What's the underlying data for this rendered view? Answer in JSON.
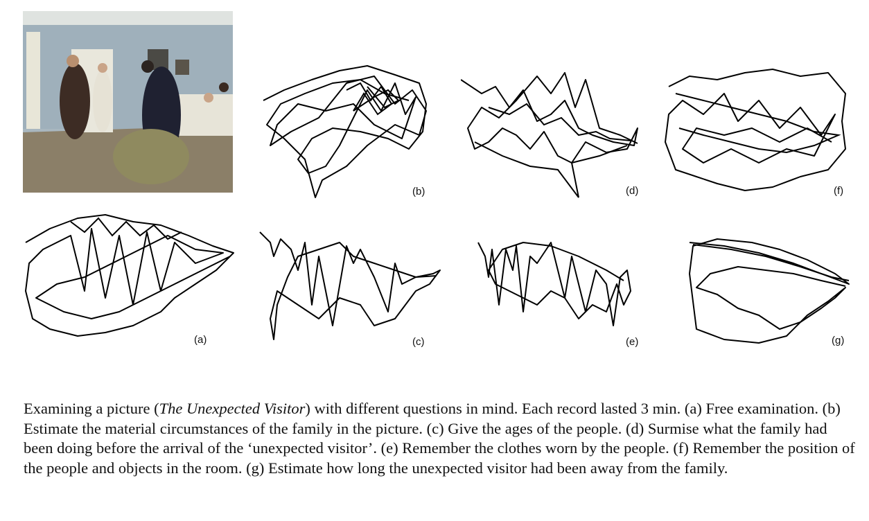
{
  "figure": {
    "panels": [
      {
        "label": "(a)"
      },
      {
        "label": "(b)"
      },
      {
        "label": "(c)"
      },
      {
        "label": "(d)"
      },
      {
        "label": "(e)"
      },
      {
        "label": "(f)"
      },
      {
        "label": "(g)"
      }
    ],
    "painting_title": "The Unexpected Visitor"
  },
  "caption": {
    "lead": "Examining a picture (",
    "title": "The Unexpected Visitor",
    "rest": ") with different questions in mind. Each record lasted 3 min. (a) Free examination. (b) Estimate the material circumstances of the family in the picture. (c) Give the ages of the people. (d) Surmise what the family had been doing before the arrival of the ‘unexpected visitor’. (e) Remember the clothes worn by the people. (f) Remember the position of the people and objects in the room. (g) Estimate how long the unexpected visitor had been away from the family."
  }
}
